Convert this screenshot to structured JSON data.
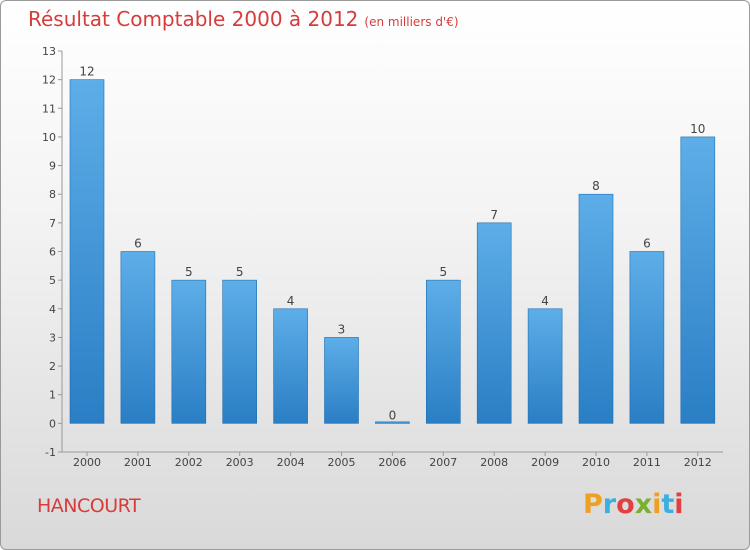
{
  "title": "Résultat Comptable 2000 à 2012",
  "subtitle": "(en milliers d'€)",
  "commune": "HANCOURT",
  "logo": {
    "letters": [
      "P",
      "r",
      "o",
      "x",
      "i",
      "t",
      "i"
    ],
    "colors": [
      "#f0a020",
      "#3ab0e0",
      "#e04040",
      "#7ab030",
      "#f0a020",
      "#3ab0e0",
      "#e04040"
    ]
  },
  "colors": {
    "bar_top": "#5daee8",
    "bar_bottom": "#2a7ec4",
    "bar_edge": "#1f6fb2",
    "title": "#d63c3c"
  },
  "chart_data": {
    "type": "bar",
    "categories": [
      "2000",
      "2001",
      "2002",
      "2003",
      "2004",
      "2005",
      "2006",
      "2007",
      "2008",
      "2009",
      "2010",
      "2011",
      "2012"
    ],
    "values": [
      12,
      6,
      5,
      5,
      4,
      3,
      0,
      5,
      7,
      4,
      8,
      6,
      10
    ],
    "data_labels": [
      "12",
      "6",
      "5",
      "5",
      "4",
      "3",
      "0",
      "5",
      "7",
      "4",
      "8",
      "6",
      "10"
    ],
    "ylim": [
      -1,
      13
    ],
    "yticks": [
      -1,
      0,
      1,
      2,
      3,
      4,
      5,
      6,
      7,
      8,
      9,
      10,
      11,
      12,
      13
    ],
    "grid": false,
    "legend": "none"
  }
}
